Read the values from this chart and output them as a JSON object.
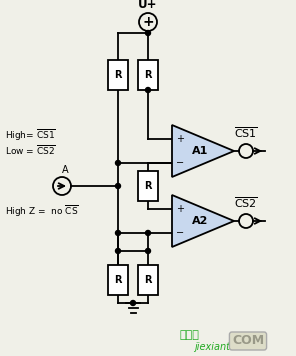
{
  "bg_color": "#f0f0e8",
  "comp_color": "#c8d8ee",
  "line_color": "#000000",
  "vcc_label": "U+",
  "a1_label": "A1",
  "a2_label": "A2",
  "signal_label": "A",
  "label_high": "High= ",
  "cs1_over": "CS1",
  "label_low": "Low = ",
  "cs2_over": "CS2",
  "label_highz": "High Z =  no ",
  "cs_over": "CS",
  "watermark1": "jiexiantu",
  "watermark2": "COM",
  "watermark_cn": "接线图"
}
